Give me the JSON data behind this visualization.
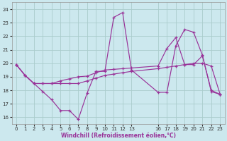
{
  "xlabel": "Windchill (Refroidissement éolien,°C)",
  "bg_color": "#cce8ee",
  "grid_color": "#aacccc",
  "line_color": "#993399",
  "ylim": [
    15.5,
    24.5
  ],
  "xlim": [
    -0.5,
    23.5
  ],
  "yticks": [
    16,
    17,
    18,
    19,
    20,
    21,
    22,
    23,
    24
  ],
  "xticks": [
    0,
    1,
    2,
    3,
    4,
    5,
    6,
    7,
    8,
    9,
    10,
    11,
    12,
    13,
    16,
    17,
    18,
    19,
    20,
    21,
    22,
    23
  ],
  "line1_x": [
    0,
    1,
    2,
    3,
    4,
    5,
    6,
    7,
    8,
    9,
    10,
    11,
    12,
    13,
    16,
    17,
    18,
    19,
    20,
    21,
    22,
    23
  ],
  "line1_y": [
    19.9,
    19.1,
    18.5,
    18.5,
    18.5,
    18.5,
    18.5,
    18.5,
    18.7,
    18.9,
    19.1,
    19.2,
    19.3,
    19.4,
    19.6,
    19.7,
    19.8,
    19.9,
    20.0,
    20.0,
    19.8,
    17.7
  ],
  "line2_x": [
    0,
    1,
    2,
    3,
    4,
    5,
    6,
    7,
    8,
    9,
    10,
    11,
    12,
    13,
    16,
    17,
    18,
    19,
    20,
    21,
    22,
    23
  ],
  "line2_y": [
    19.9,
    19.1,
    18.5,
    17.9,
    17.3,
    16.5,
    16.5,
    15.85,
    17.8,
    19.4,
    19.4,
    23.4,
    23.75,
    19.5,
    17.85,
    17.85,
    21.3,
    22.5,
    22.3,
    20.6,
    17.9,
    17.7
  ],
  "line3_x": [
    0,
    1,
    2,
    3,
    4,
    5,
    6,
    7,
    8,
    9,
    10,
    11,
    12,
    13,
    16,
    17,
    18,
    19,
    20,
    21,
    22,
    23
  ],
  "line3_y": [
    19.9,
    19.1,
    18.5,
    18.5,
    18.5,
    18.7,
    18.85,
    19.0,
    19.05,
    19.3,
    19.5,
    19.55,
    19.6,
    19.65,
    19.8,
    21.1,
    21.9,
    19.9,
    19.9,
    20.55,
    18.0,
    17.7
  ]
}
